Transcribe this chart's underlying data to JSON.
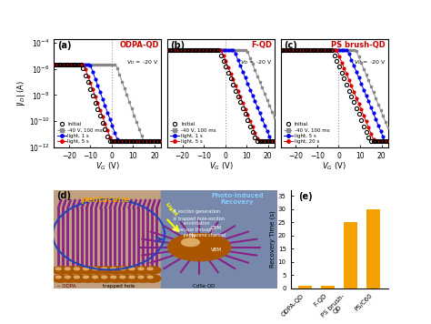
{
  "panels_abc": {
    "titles": [
      "ODPA-QD",
      "F-QD",
      "PS brush-QD"
    ],
    "labels": [
      "(a)",
      "(b)",
      "(c)"
    ],
    "vd_label": "$V_D$ = -20 V",
    "legend_entries": [
      [
        "Initial",
        "-40 V, 100 ms",
        "light, 1 s",
        "light, 5 s"
      ],
      [
        "Initial",
        "-40 V, 100 ms",
        "light, 1 s",
        "light, 5 s"
      ],
      [
        "Initial",
        "-40 V, 100 ms",
        "light, 5 s",
        "light, 20 s"
      ]
    ],
    "xlim": [
      -27,
      23
    ],
    "xticks": [
      -20,
      -10,
      0,
      10,
      20
    ],
    "ylim_min": 1e-12,
    "ylim_max": 0.0002,
    "xlabel": "$V_G$ (V)",
    "ylabel": "$|I_D|$ (A)"
  },
  "bar_chart": {
    "label": "(e)",
    "categories": [
      "ODPA-QD",
      "F-QD",
      "PS brush-\nQD",
      "PS/C60"
    ],
    "values": [
      1,
      1,
      25,
      30
    ],
    "color": "#F5A000",
    "ylabel": "Recovery Time (s)",
    "ylim": [
      0,
      37
    ],
    "yticks": [
      0,
      5,
      10,
      15,
      20,
      25,
      30,
      35
    ]
  },
  "colors": {
    "initial": "#000000",
    "program": "#888888",
    "light1": "#0000EE",
    "light2": "#DD0000",
    "title_color": "#CC0000",
    "background": "#FFFFFF",
    "panel_d_bg": "#C8C8C8",
    "panel_d_box_bg": "#8888AA",
    "pentacene_color": "#882288",
    "qd_color": "#AA5500",
    "photo_box_bg": "#9999BB"
  },
  "curves_a": {
    "vth_initial": -14,
    "vth_program": 2,
    "vth_light1": -10,
    "vth_light2": -13,
    "on_current": 2e-06,
    "off_floor": 3e-12,
    "ss": 2.2
  },
  "curves_b": {
    "vth_initial": -3,
    "vth_program": 10,
    "vth_light1": 4,
    "vth_light2": -2,
    "on_current": 3e-05,
    "off_floor": 3e-12,
    "ss": 2.5
  },
  "curves_c": {
    "vth_initial": -3,
    "vth_program": 8,
    "vth_light1": 4,
    "vth_light2": -1,
    "on_current": 3e-05,
    "off_floor": 3e-12,
    "ss": 2.5
  }
}
